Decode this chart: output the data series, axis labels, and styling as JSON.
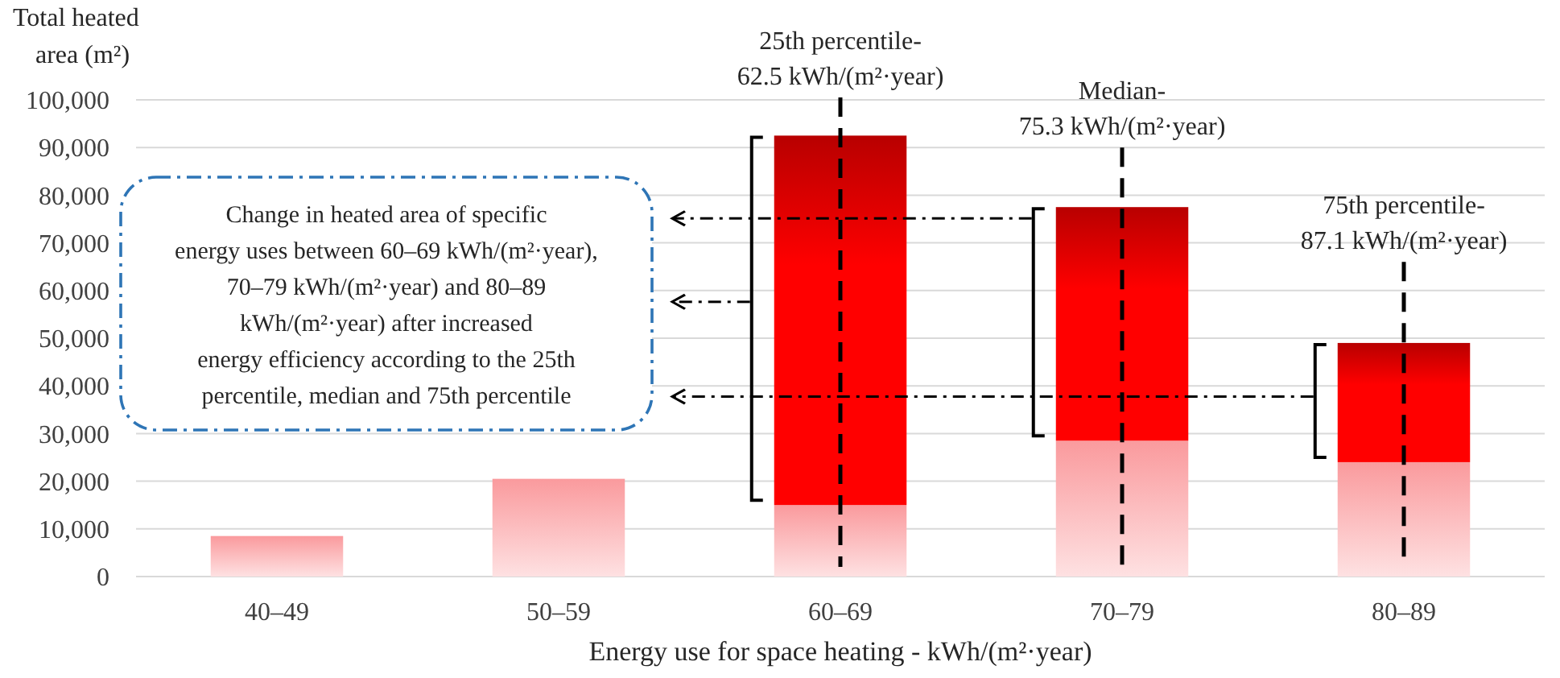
{
  "chart_data": {
    "type": "bar",
    "stacked": true,
    "ylabel": "Total heated\narea (m²)",
    "xlabel": "Energy use for space heating - kWh/(m²·year)",
    "categories": [
      "40–49",
      "50–59",
      "60–69",
      "70–79",
      "80–89"
    ],
    "series": [
      {
        "color": "#fa9a9d",
        "values": [
          8500,
          20500,
          15000,
          28500,
          24000
        ]
      },
      {
        "color": "#ff0000",
        "values": [
          null,
          null,
          77500,
          49000,
          25000
        ]
      }
    ],
    "ylim": [
      0,
      100000
    ],
    "yticks": [
      0,
      {
        "value": 10000,
        "label": "10,000"
      },
      {
        "value": 20000,
        "label": "20,000"
      },
      {
        "value": 30000,
        "label": "30,000"
      },
      {
        "value": 40000,
        "label": "40,000"
      },
      {
        "value": 50000,
        "label": "50,000"
      },
      {
        "value": 60000,
        "label": "60,000"
      },
      {
        "value": 70000,
        "label": "70,000"
      },
      {
        "value": 80000,
        "label": "80,000"
      },
      {
        "value": 90000,
        "label": "90,000"
      },
      {
        "value": 100000,
        "label": "100,000"
      }
    ],
    "grid": "y",
    "ref_lines": [
      {
        "axis": "x",
        "value": "60–69",
        "label": "25th percentile-\n62.5 kWh/(m²·year)",
        "line_style": "dashed"
      },
      {
        "axis": "x",
        "value": "70–79",
        "label": "Median-\n75.3 kWh/(m²·year)",
        "line_style": "dashed"
      },
      {
        "axis": "x",
        "value": "80–89",
        "label": "75th percentile-\n87.1 kWh/(m²·year)",
        "line_style": "dashed"
      }
    ],
    "annotations": [
      "Change in heated area of specific\nenergy uses between 60–69 kWh/(m²·year),\n70–79 kWh/(m²·year) and 80–89\nkWh/(m²·year) after increased\nenergy efficiency according to the 25th\npercentile, median and 75th percentile"
    ]
  }
}
